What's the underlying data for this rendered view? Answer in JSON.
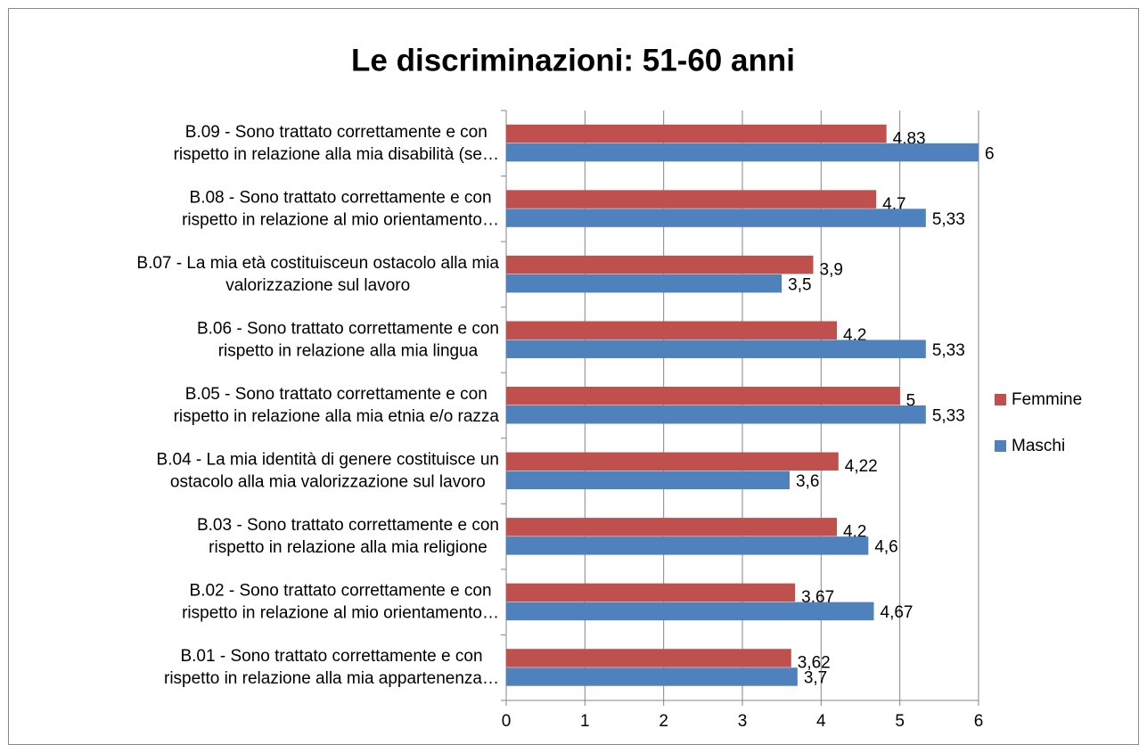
{
  "chart_data": {
    "type": "bar",
    "orientation": "horizontal",
    "title": "Le discriminazioni: 51-60 anni",
    "categories": [
      [
        "B.01 - Sono trattato correttamente e con",
        "rispetto in relazione alla mia appartenenza…"
      ],
      [
        "B.02 - Sono trattato correttamente e con",
        "rispetto in relazione al mio orientamento…"
      ],
      [
        "B.03 - Sono trattato correttamente e con",
        "rispetto in relazione alla mia religione"
      ],
      [
        "B.04 - La mia identità di genere costituisce un",
        "ostacolo alla mia valorizzazione sul lavoro"
      ],
      [
        "B.05 - Sono trattato correttamente e con",
        "rispetto in relazione alla mia etnia e/o razza"
      ],
      [
        "B.06 - Sono trattato correttamente e con",
        "rispetto in relazione alla mia lingua"
      ],
      [
        "B.07 - La mia età costituisceun ostacolo alla mia",
        "valorizzazione sul lavoro"
      ],
      [
        "B.08 - Sono trattato correttamente e con",
        "rispetto in relazione al mio orientamento…"
      ],
      [
        "B.09 - Sono trattato correttamente e con",
        "rispetto in relazione alla mia disabilità (se…"
      ]
    ],
    "series": [
      {
        "name": "Femmine",
        "color": "#c0504d",
        "values": [
          3.62,
          3.67,
          4.2,
          4.22,
          5,
          4.2,
          3.9,
          4.7,
          4.83
        ],
        "value_labels": [
          "3,62",
          "3,67",
          "4,2",
          "4,22",
          "5",
          "4,2",
          "3,9",
          "4,7",
          "4,83"
        ]
      },
      {
        "name": "Maschi",
        "color": "#4f81bd",
        "values": [
          3.7,
          4.67,
          4.6,
          3.6,
          5.33,
          5.33,
          3.5,
          5.33,
          6
        ],
        "value_labels": [
          "3,7",
          "4,67",
          "4,6",
          "3,6",
          "5,33",
          "5,33",
          "3,5",
          "5,33",
          "6"
        ]
      }
    ],
    "xlim": [
      0,
      6
    ],
    "xticks": [
      0,
      1,
      2,
      3,
      4,
      5,
      6
    ],
    "grid": true,
    "legend": "right"
  }
}
